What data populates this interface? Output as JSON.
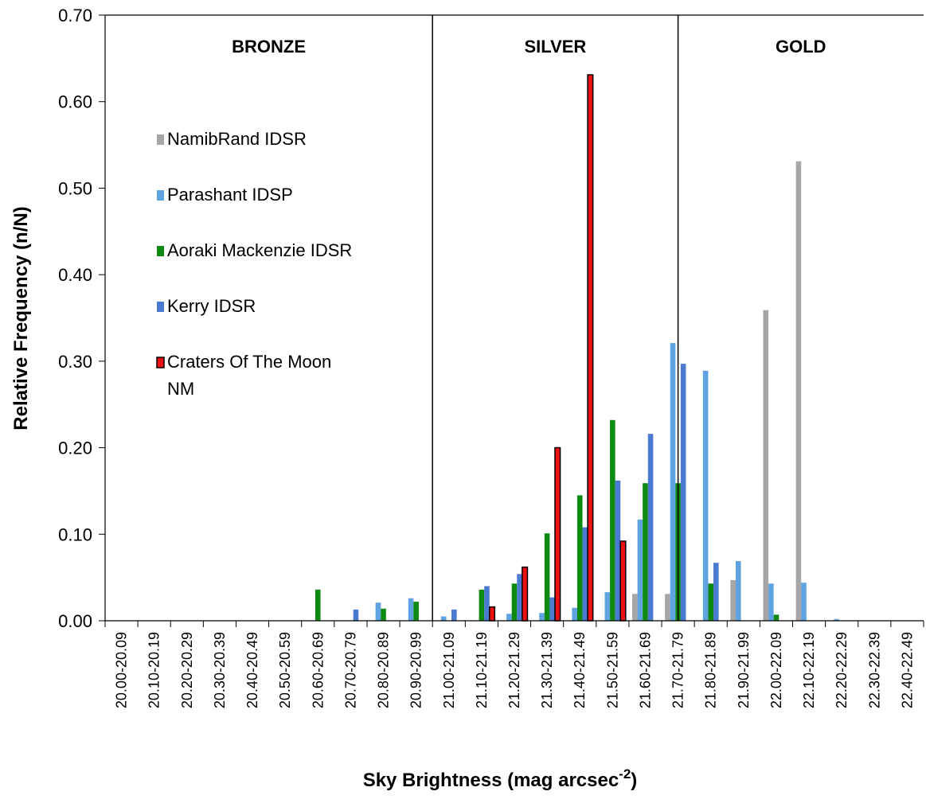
{
  "chart_data": {
    "type": "bar",
    "ylabel": "Relative Frequency (n/N)",
    "xlabel": "Sky Brightness (mag arcsec",
    "xlabel_superscript": "-2",
    "xlabel_suffix": ")",
    "ylim": [
      0,
      0.7
    ],
    "y_ticks": [
      "0.00",
      "0.10",
      "0.20",
      "0.30",
      "0.40",
      "0.50",
      "0.60",
      "0.70"
    ],
    "categories": [
      "20.00-20.09",
      "20.10-20.19",
      "20.20-20.29",
      "20.30-20.39",
      "20.40-20.49",
      "20.50-20.59",
      "20.60-20.69",
      "20.70-20.79",
      "20.80-20.89",
      "20.90-20.99",
      "21.00-21.09",
      "21.10-21.19",
      "21.20-21.29",
      "21.30-21.39",
      "21.40-21.49",
      "21.50-21.59",
      "21.60-21.69",
      "21.70-21.79",
      "21.80-21.89",
      "21.90-21.99",
      "22.00-22.09",
      "22.10-22.19",
      "22.20-22.29",
      "22.30-22.39",
      "22.40-22.49"
    ],
    "regions": [
      {
        "label": "BRONZE",
        "from": 0,
        "to": 10
      },
      {
        "label": "SILVER",
        "from": 10,
        "to": 17.5
      },
      {
        "label": "GOLD",
        "from": 17.5,
        "to": 25
      }
    ],
    "grid": false,
    "legend_position": "left",
    "series": [
      {
        "name": "NamibRand IDSR",
        "color": "#a6a6a6",
        "values": [
          0,
          0,
          0,
          0,
          0,
          0,
          0,
          0,
          0,
          0,
          0,
          0,
          0,
          0,
          0,
          0,
          0.031,
          0.031,
          0,
          0.047,
          0.359,
          0.531,
          0,
          0,
          0
        ]
      },
      {
        "name": "Parashant IDSP",
        "color": "#5fa3e0",
        "values": [
          0,
          0,
          0,
          0,
          0,
          0,
          0,
          0,
          0.021,
          0.026,
          0.005,
          0,
          0.008,
          0.009,
          0.015,
          0.033,
          0.117,
          0.321,
          0.289,
          0.069,
          0.043,
          0.044,
          0.002,
          0,
          0
        ]
      },
      {
        "name": "Aoraki Mackenzie IDSR",
        "color": "#0e8a12",
        "values": [
          0,
          0,
          0,
          0,
          0,
          0,
          0.036,
          0,
          0.014,
          0.022,
          0,
          0.036,
          0.043,
          0.101,
          0.145,
          0.232,
          0.159,
          0.159,
          0.043,
          0,
          0.007,
          0,
          0,
          0,
          0
        ]
      },
      {
        "name": "Kerry IDSR",
        "color": "#4a7bd0",
        "values": [
          0,
          0,
          0,
          0,
          0,
          0,
          0,
          0.013,
          0,
          0,
          0.013,
          0.04,
          0.054,
          0.027,
          0.108,
          0.162,
          0.216,
          0.297,
          0.067,
          0,
          0,
          0,
          0,
          0,
          0
        ]
      },
      {
        "name": "Craters Of The Moon NM",
        "name_lines": [
          "Craters Of The Moon",
          "NM"
        ],
        "color": "#ee1111",
        "outline": "#000000",
        "values": [
          0,
          0,
          0,
          0,
          0,
          0,
          0,
          0,
          0,
          0,
          0,
          0.016,
          0.062,
          0.2,
          0.631,
          0.092,
          0,
          0,
          0,
          0,
          0,
          0,
          0,
          0,
          0
        ]
      }
    ]
  }
}
